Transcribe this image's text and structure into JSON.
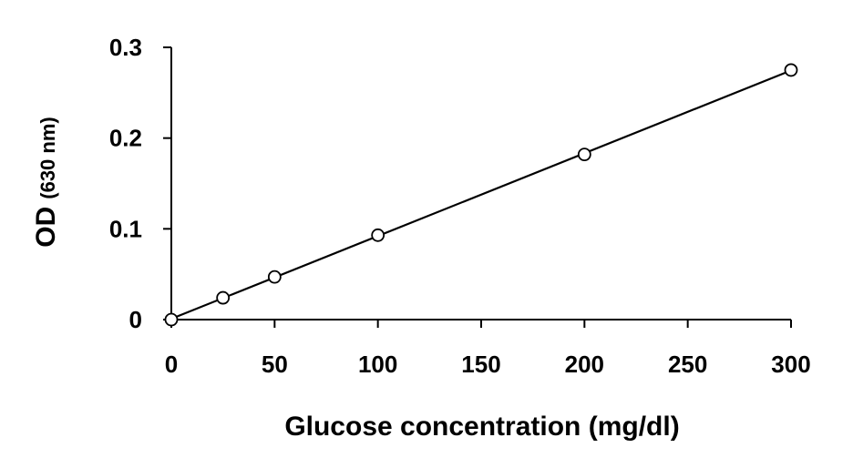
{
  "chart_data": {
    "type": "scatter",
    "xlabel": "Glucose concentration (mg/dl)",
    "ylabel_main": "OD",
    "ylabel_unit": "(630 nm)",
    "xlim": [
      0,
      300
    ],
    "ylim": [
      0,
      0.3
    ],
    "x_ticks": [
      "0",
      "50",
      "100",
      "150",
      "200",
      "250",
      "300"
    ],
    "y_ticks": [
      "0",
      "0.1",
      "0.2",
      "0.3"
    ],
    "grid": false,
    "legend": "none",
    "trendline": "linear",
    "series": [
      {
        "x": [
          0,
          25,
          50,
          100,
          200,
          300
        ],
        "y": [
          0.0,
          0.024,
          0.047,
          0.093,
          0.182,
          0.275
        ]
      }
    ],
    "colors": {
      "axis": "#000000",
      "marker_fill": "#ffffff",
      "marker_stroke": "#000000",
      "line": "#000000"
    }
  }
}
